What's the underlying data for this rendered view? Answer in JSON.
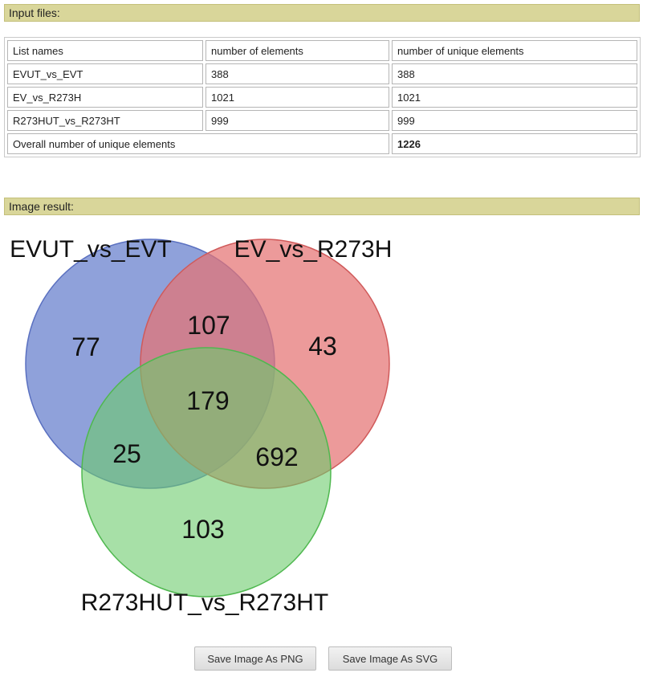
{
  "sections": {
    "input_header": "Input files:",
    "image_header": "Image result:"
  },
  "table": {
    "headers": [
      "List names",
      "number of elements",
      "number of unique elements"
    ],
    "rows": [
      [
        "EVUT_vs_EVT",
        "388",
        "388"
      ],
      [
        "EV_vs_R273H",
        "1021",
        "1021"
      ],
      [
        "R273HUT_vs_R273HT",
        "999",
        "999"
      ]
    ],
    "overall_label": "Overall number of unique elements",
    "overall_value": "1226"
  },
  "venn": {
    "sets": [
      {
        "name": "EVUT_vs_EVT",
        "color": "#6f86d0"
      },
      {
        "name": "EV_vs_R273H",
        "color": "#e57373"
      },
      {
        "name": "R273HUT_vs_R273HT",
        "color": "#6dcc6d"
      }
    ],
    "regions": {
      "only_a": "77",
      "a_b": "107",
      "only_b": "43",
      "a_b_c": "179",
      "a_c": "25",
      "b_c": "692",
      "only_c": "103"
    }
  },
  "buttons": {
    "save_png": "Save Image As PNG",
    "save_svg": "Save Image As SVG"
  },
  "colors": {
    "header_bg": "#d9d69a"
  }
}
